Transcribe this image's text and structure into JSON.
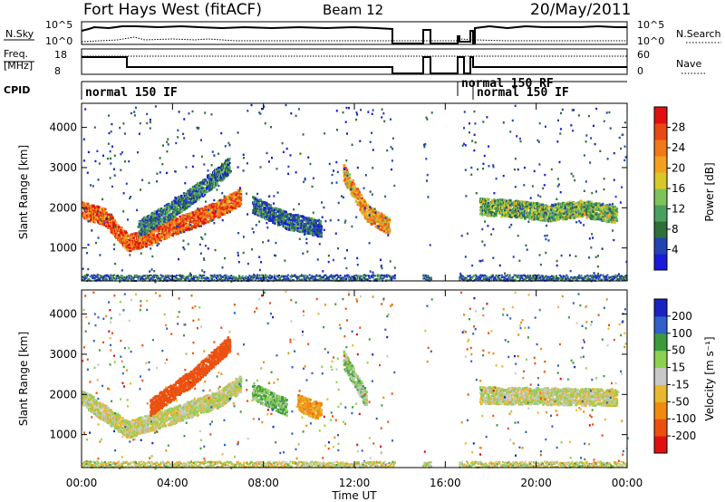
{
  "header": {
    "station": "Fort Hays West (fitACF)",
    "beam": "Beam 12",
    "date": "20/May/2011"
  },
  "summary_panels": {
    "nsky_label": "N.Sky",
    "nsearch_label": "N.Search",
    "nsky_ticks": [
      "10^5",
      "10^0"
    ],
    "nsearch_ticks": [
      "10^5",
      "10^0"
    ],
    "freq_label": "Freq.",
    "freq_unit": "[MHz]",
    "freq_ticks": [
      "18",
      "8"
    ],
    "nave_label": "Nave",
    "nave_ticks": [
      "60",
      "0"
    ],
    "cpid_label": "CPID",
    "cpid_entries": [
      "normal 150 IF",
      "normal 150 RF",
      "normal 150 IF"
    ]
  },
  "colorbars": {
    "power": {
      "label": "Power [dB]",
      "ticks": [
        "28",
        "24",
        "20",
        "16",
        "12",
        "8",
        "4"
      ],
      "colors": [
        "#1a1ad8",
        "#2244b0",
        "#2e6f3a",
        "#4ba060",
        "#7cc35a",
        "#d8c92a",
        "#f5a020",
        "#f07818",
        "#e84814",
        "#e01010"
      ]
    },
    "velocity": {
      "label": "Velocity [m s⁻¹]",
      "ticks": [
        "200",
        "100",
        "50",
        "15",
        "-15",
        "-50",
        "-100",
        "-200"
      ],
      "colors": [
        "#1a22c0",
        "#3060c8",
        "#3c9a3c",
        "#8cd050",
        "#c8c8c8",
        "#e8b830",
        "#f08a10",
        "#ec5010",
        "#e01010"
      ]
    }
  },
  "axes": {
    "ylabel": "Slant Range [km]",
    "xlabel": "Time UT",
    "yticks": [
      "4000",
      "3000",
      "2000",
      "1000"
    ],
    "xticks": [
      "00:00",
      "04:00",
      "08:00",
      "12:00",
      "16:00",
      "20:00",
      "00:00"
    ]
  },
  "chart_data": [
    {
      "type": "heatmap",
      "title": "",
      "quantity": "Power",
      "xlabel": "Time UT",
      "ylabel": "Slant Range [km]",
      "xlim_hours": [
        0,
        24
      ],
      "ylim_km": [
        180,
        4600
      ],
      "colorbar_label": "Power [dB]",
      "colorbar_ticks": [
        4,
        8,
        12,
        16,
        20,
        24,
        28
      ],
      "features": [
        {
          "name": "main band",
          "t_hours": [
            0.0,
            1.0,
            2.0,
            3.0,
            4.0,
            5.0,
            6.0,
            7.0
          ],
          "range_km": [
            1950,
            1800,
            1150,
            1300,
            1550,
            1750,
            2000,
            2300
          ],
          "power_db": 26
        },
        {
          "name": "upper arc",
          "t_hours": [
            2.5,
            4.0,
            5.5,
            6.5
          ],
          "range_km": [
            1500,
            2000,
            2600,
            3100
          ],
          "power_db": 10
        },
        {
          "name": "mid band",
          "t_hours": [
            7.5,
            9.0,
            10.5
          ],
          "range_km": [
            2100,
            1700,
            1500
          ],
          "power_db": 8
        },
        {
          "name": "arc after 12",
          "t_hours": [
            11.5,
            12.5,
            13.5
          ],
          "range_km": [
            2900,
            1900,
            1550
          ],
          "power_db": 22
        },
        {
          "name": "evening band",
          "t_hours": [
            17.5,
            19.0,
            20.5,
            22.0,
            23.5
          ],
          "range_km": [
            2050,
            2000,
            1900,
            2000,
            1850
          ],
          "power_db": 14
        }
      ]
    },
    {
      "type": "heatmap",
      "title": "",
      "quantity": "Velocity",
      "xlabel": "Time UT",
      "ylabel": "Slant Range [km]",
      "xlim_hours": [
        0,
        24
      ],
      "ylim_km": [
        180,
        4600
      ],
      "colorbar_label": "Velocity [m s⁻¹]",
      "colorbar_ticks": [
        -200,
        -100,
        -50,
        -15,
        15,
        50,
        100,
        200
      ],
      "features": [
        {
          "name": "ground scatter band",
          "t_hours": [
            0.0,
            2.0,
            4.0,
            6.0,
            7.0
          ],
          "range_km": [
            1950,
            1150,
            1500,
            1900,
            2300
          ],
          "velocity_ms": 0
        },
        {
          "name": "negative arc",
          "t_hours": [
            3.0,
            5.0,
            6.5
          ],
          "range_km": [
            1700,
            2500,
            3300
          ],
          "velocity_ms": -150
        },
        {
          "name": "positive cluster",
          "t_hours": [
            7.5,
            9.0
          ],
          "range_km": [
            2100,
            1700
          ],
          "velocity_ms": 40
        },
        {
          "name": "orange cluster",
          "t_hours": [
            9.5,
            10.5
          ],
          "range_km": [
            1800,
            1600
          ],
          "velocity_ms": -60
        },
        {
          "name": "green arc",
          "t_hours": [
            11.5,
            12.5
          ],
          "range_km": [
            2900,
            1900
          ],
          "velocity_ms": 30
        },
        {
          "name": "evening ground scatter",
          "t_hours": [
            17.5,
            23.5
          ],
          "range_km": [
            2000,
            1950
          ],
          "velocity_ms": 0
        }
      ]
    }
  ]
}
